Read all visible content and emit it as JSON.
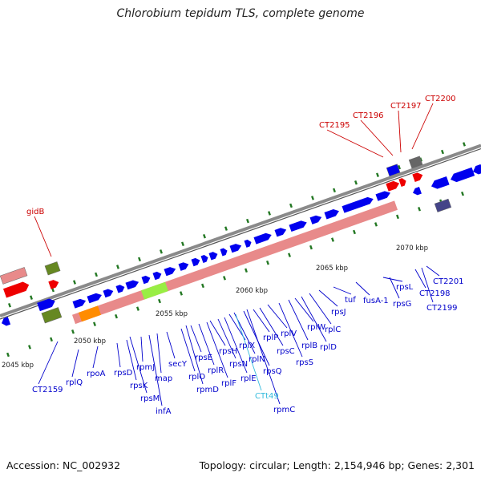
{
  "title": "Chlorobium tepidum TLS, complete genome",
  "footer": {
    "accession": "Accession: NC_002932",
    "topology": "Topology: circular; Length: 2,154,946 bp; Genes: 2,301"
  },
  "colors": {
    "gene_label": "#0000cc",
    "rna_label": "#33bbdd",
    "highlight_label": "#cc0000",
    "gene_arrow": "#0000ee",
    "backbone": "#8a8a8a",
    "operon": "#e88a8a",
    "kbp_tick": "#227722"
  },
  "kbp_labels": [
    "2045 kbp",
    "2050 kbp",
    "2055 kbp",
    "2060 kbp",
    "2065 kbp",
    "2070 kbp"
  ],
  "gene_labels": [
    "CT2159",
    "rplQ",
    "rpoA",
    "rpsD",
    "rpsK",
    "rpmJ",
    "rpsM",
    "infA",
    "map",
    "secY",
    "rplO",
    "rpmD",
    "rpsE",
    "rplR",
    "rplF",
    "rpsH",
    "rpsN",
    "rplE",
    "rplX",
    "rplN",
    "CTt49",
    "rpsQ",
    "rpmC",
    "rplP",
    "rpsC",
    "rplV",
    "rpsS",
    "rplB",
    "rplW",
    "rplD",
    "rplC",
    "rpsJ",
    "tuf",
    "fusA-1",
    "rpsL",
    "rpsG",
    "CT2198",
    "CT2199",
    "CT2201"
  ],
  "top_labels": [
    "gidB",
    "CT2195",
    "CT2196",
    "CT2197",
    "CT2200"
  ]
}
